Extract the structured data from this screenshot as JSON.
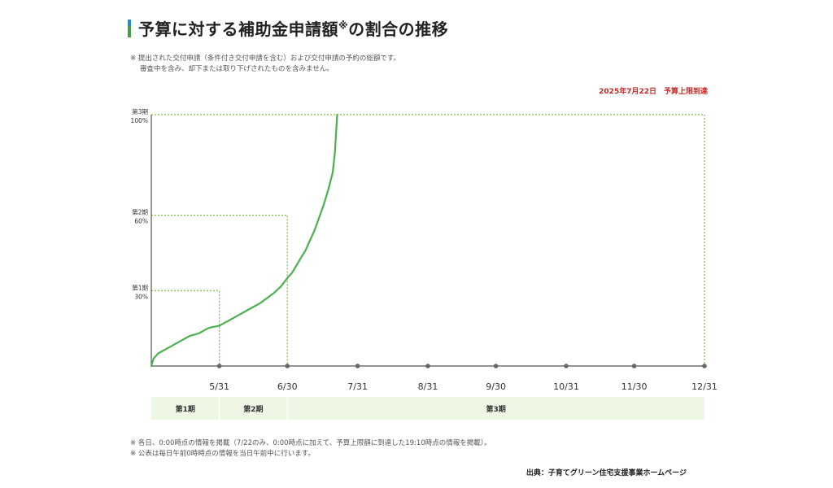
{
  "title": {
    "main": "予算に対する補助金申請額",
    "mark": "※",
    "suffix": "の割合の推移"
  },
  "notes_top": [
    "※ 提出された交付申請（条件付き交付申請を含む）および交付申請の予約の総額です。",
    "審査中を含み、却下または取り下げされたものを含みません。"
  ],
  "deadline_note": "2025年7月22日　予算上限到達",
  "colors": {
    "line": "#4caf50",
    "guide": "#7cc242",
    "axis": "#555555",
    "band": "#eef6e4",
    "deadline": "#c62828"
  },
  "chart_data": {
    "type": "line",
    "title": "予算に対する補助金申請額※の割合の推移",
    "xlabel": "",
    "ylabel": "",
    "x_ticks": [
      "5/31",
      "6/30",
      "7/31",
      "8/31",
      "9/30",
      "10/31",
      "11/30",
      "12/31"
    ],
    "y_ticks": [
      {
        "label": "第1期",
        "sublabel": "30%",
        "value": 30
      },
      {
        "label": "第2期",
        "sublabel": "60%",
        "value": 60
      },
      {
        "label": "第3期",
        "sublabel": "100%",
        "value": 100
      }
    ],
    "ylim": [
      0,
      100
    ],
    "xlim": [
      "5/1",
      "12/31"
    ],
    "series": [
      {
        "x": [
          "5/1",
          "5/2",
          "5/4",
          "5/6",
          "5/8",
          "5/10",
          "5/12",
          "5/14",
          "5/16",
          "5/18",
          "5/20",
          "5/22",
          "5/24",
          "5/26",
          "5/28",
          "5/31",
          "6/3",
          "6/6",
          "6/9",
          "6/12",
          "6/15",
          "6/18",
          "6/21",
          "6/24",
          "6/27",
          "6/30",
          "7/2",
          "7/4",
          "7/6",
          "7/8",
          "7/10",
          "7/12",
          "7/14",
          "7/16",
          "7/18",
          "7/20",
          "7/21",
          "7/22"
        ],
        "values": [
          0,
          3,
          5,
          6,
          7,
          8,
          9,
          10,
          11,
          12,
          12.5,
          13,
          14,
          15,
          15.5,
          16,
          17.5,
          19,
          20.5,
          22,
          23.5,
          25,
          27,
          29,
          31.5,
          35,
          37,
          40,
          43,
          46,
          50,
          54,
          59,
          64,
          70,
          77,
          85,
          100
        ]
      }
    ],
    "periods": [
      {
        "label": "第1期",
        "end": "5/31",
        "level": 30
      },
      {
        "label": "第2期",
        "end": "6/30",
        "level": 60
      },
      {
        "label": "第3期",
        "end": "12/31",
        "level": 100
      }
    ]
  },
  "notes_bottom": [
    "※ 各日、0:00時点の情報を掲載（7/22のみ、0:00時点に加えて、予算上限額に到達した19:10時点の情報を掲載）。",
    "※ 公表は毎日午前0時時点の情報を当日午前中に行います。"
  ],
  "source": "出典：子育てグリーン住宅支援事業ホームページ"
}
